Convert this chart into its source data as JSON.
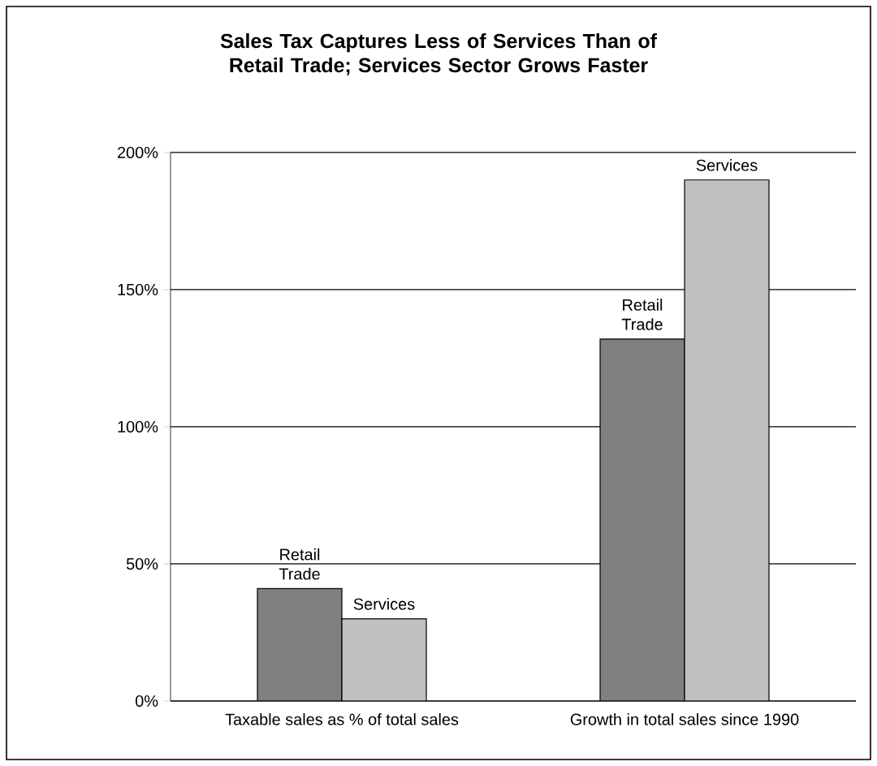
{
  "chart_data": {
    "type": "bar",
    "title": "Sales Tax Captures Less of Services Than of Retail Trade;  Services Sector Grows Faster",
    "categories": [
      "Taxable sales as % of total sales",
      "Growth in total sales since 1990"
    ],
    "series": [
      {
        "name": "Retail Trade",
        "color": "#808080",
        "values": [
          41,
          132
        ]
      },
      {
        "name": "Services",
        "color": "#c0c0c0",
        "values": [
          30,
          190
        ]
      }
    ],
    "ylim": [
      0,
      200
    ],
    "yticks": [
      {
        "value": 0,
        "label": "0%"
      },
      {
        "value": 50,
        "label": "50%"
      },
      {
        "value": 100,
        "label": "100%"
      },
      {
        "value": 150,
        "label": "150%"
      },
      {
        "value": 200,
        "label": "200%"
      }
    ],
    "grid": "y",
    "legend": false
  }
}
